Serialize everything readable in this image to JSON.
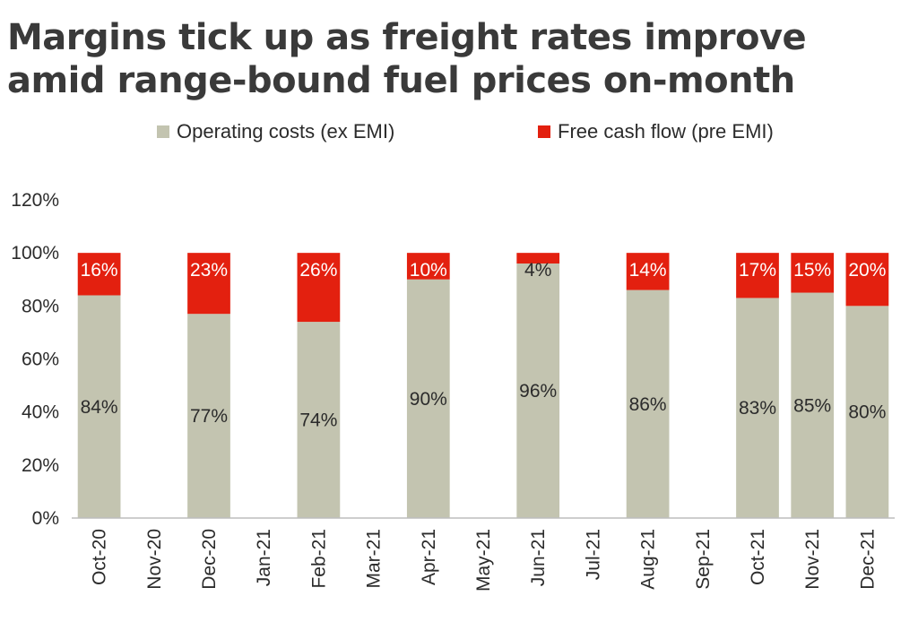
{
  "chart_data": {
    "type": "bar",
    "stacked": true,
    "title": "Margins tick up as freight rates improve amid range-bound fuel prices on-month",
    "categories": [
      "Oct-20",
      "Nov-20",
      "Dec-20",
      "Jan-21",
      "Feb-21",
      "Mar-21",
      "Apr-21",
      "May-21",
      "Jun-21",
      "Jul-21",
      "Aug-21",
      "Sep-21",
      "Oct-21",
      "Nov-21",
      "Dec-21"
    ],
    "series": [
      {
        "name": "Operating costs (ex EMI)",
        "color": "#c3c4b0",
        "label_color": "#2b2b2b",
        "values": [
          84,
          null,
          77,
          null,
          74,
          null,
          90,
          null,
          96,
          null,
          86,
          null,
          83,
          85,
          80
        ],
        "labels": [
          "84%",
          "",
          "77%",
          "",
          "74%",
          "",
          "90%",
          "",
          "96%",
          "",
          "86%",
          "",
          "83%",
          "85%",
          "80%"
        ]
      },
      {
        "name": "Free cash flow (pre EMI)",
        "color": "#e3200f",
        "label_color": "#ffffff",
        "values": [
          16,
          null,
          23,
          null,
          26,
          null,
          10,
          null,
          4,
          null,
          14,
          null,
          17,
          15,
          20
        ],
        "labels": [
          "16%",
          "",
          "23%",
          "",
          "26%",
          "",
          "10%",
          "",
          "4%",
          "",
          "14%",
          "",
          "17%",
          "15%",
          "20%"
        ]
      }
    ],
    "ylim": [
      0,
      120
    ],
    "yticks": [
      "0%",
      "20%",
      "40%",
      "60%",
      "80%",
      "100%",
      "120%"
    ],
    "legend_position": "top",
    "grid": false
  }
}
